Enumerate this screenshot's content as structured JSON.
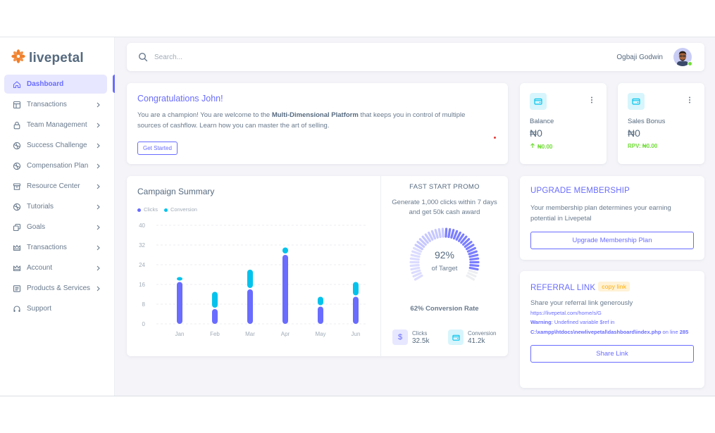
{
  "brand": {
    "name": "livepetal",
    "accent": "#696cff",
    "logo_color": "#f07f2a"
  },
  "search": {
    "placeholder": "Search..."
  },
  "user": {
    "name": "Ogbaji Godwin",
    "status_color": "#71dd37"
  },
  "sidebar": {
    "items": [
      {
        "label": "Dashboard",
        "icon": "home-icon",
        "active": true,
        "chevron": false
      },
      {
        "label": "Transactions",
        "icon": "layout-icon",
        "active": false,
        "chevron": true
      },
      {
        "label": "Team Management",
        "icon": "lock-icon",
        "active": false,
        "chevron": true
      },
      {
        "label": "Success Challenge",
        "icon": "grid-icon",
        "active": false,
        "chevron": true
      },
      {
        "label": "Compensation Plan",
        "icon": "grid-icon",
        "active": false,
        "chevron": true
      },
      {
        "label": "Resource Center",
        "icon": "box-icon",
        "active": false,
        "chevron": true
      },
      {
        "label": "Tutorials",
        "icon": "grid-icon",
        "active": false,
        "chevron": true
      },
      {
        "label": "Goals",
        "icon": "copy-icon",
        "active": false,
        "chevron": true
      },
      {
        "label": "Transactions",
        "icon": "crown-icon",
        "active": false,
        "chevron": true
      },
      {
        "label": "Account",
        "icon": "crown-icon",
        "active": false,
        "chevron": true
      },
      {
        "label": "Products & Services",
        "icon": "list-icon",
        "active": false,
        "chevron": true
      },
      {
        "label": "Support",
        "icon": "headphones-icon",
        "active": false,
        "chevron": false
      }
    ]
  },
  "congrats": {
    "title": "Congratulations John!",
    "text_before": "You are a champion! You are welcome to the ",
    "text_bold": "Multi-Dimensional Platform",
    "text_after": " that keeps you in control of multiple sources of cashflow. Learn how you can master the art of selling.",
    "button": "Get Started"
  },
  "stats": [
    {
      "label": "Balance",
      "value": "₦0",
      "sub": "₦0.00",
      "icon": "wallet-icon",
      "arrow": true
    },
    {
      "label": "Sales Bonus",
      "value": "₦0",
      "sub": "RPV: ₦0.00",
      "icon": "wallet-icon",
      "arrow": false
    }
  ],
  "campaign": {
    "title": "Campaign Summary",
    "legend": {
      "clicks": "Clicks",
      "conversion": "Conversion"
    }
  },
  "chart_data": {
    "type": "bar",
    "categories": [
      "Jan",
      "Feb",
      "Mar",
      "Apr",
      "May",
      "Jun"
    ],
    "series": [
      {
        "name": "Clicks",
        "color": "#696cff",
        "values": [
          17,
          6,
          14,
          28,
          7,
          11
        ]
      },
      {
        "name": "Conversion",
        "color": "#03c3ec",
        "values": [
          2,
          7,
          8,
          3,
          4,
          6
        ]
      }
    ],
    "stacked": true,
    "yticks": [
      0,
      8,
      16,
      24,
      32,
      40
    ],
    "ylim": [
      0,
      40
    ],
    "grid": true,
    "legend_position": "top-left"
  },
  "promo": {
    "title": "FAST START PROMO",
    "text": "Generate 1,000 clicks within 7 days and get 50k cash award",
    "gauge_percent": 92,
    "gauge_value": "92%",
    "gauge_label": "of Target",
    "conversion_rate": "62% Conversion Rate",
    "clicks_label": "Clicks",
    "clicks_value": "32.5k",
    "conversion_label": "Conversion",
    "conversion_value": "41.2k"
  },
  "upgrade": {
    "title": "UPGRADE MEMBERSHIP",
    "text": "Your membership plan determines your earning potential in Livepetal",
    "button": "Upgrade Membership Plan"
  },
  "referral": {
    "title": "REFERRAL LINK",
    "badge": "copy link",
    "text": "Share your referral link generously",
    "url": "https://livepetal.com/home/s/G",
    "warning_label": "Warning",
    "warning_mid": ": Undefined variable $ref in ",
    "warning_path": "C:\\xampp\\htdocs\\newlivepetal\\dashboard\\index.php",
    "warning_on": " on line ",
    "warning_line": "285",
    "button": "Share Link"
  }
}
